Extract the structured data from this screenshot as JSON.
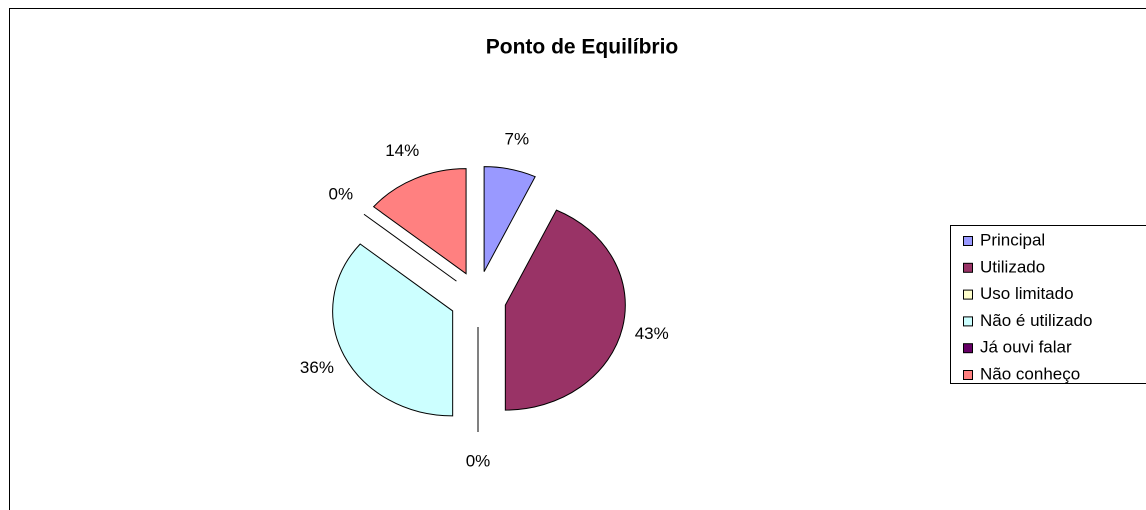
{
  "chart_data": {
    "type": "pie",
    "title": "Ponto de Equilíbrio",
    "categories": [
      "Principal",
      "Utilizado",
      "Uso limitado",
      "Não é utilizado",
      "Já ouvi falar",
      "Não conheço"
    ],
    "values": [
      7,
      43,
      0,
      36,
      0,
      14
    ],
    "value_labels": [
      "7%",
      "43%",
      "0%",
      "36%",
      "0%",
      "14%"
    ],
    "colors": [
      "#9999ff",
      "#993366",
      "#ffffcc",
      "#ccffff",
      "#660066",
      "#ff8080"
    ],
    "legend": "right"
  }
}
